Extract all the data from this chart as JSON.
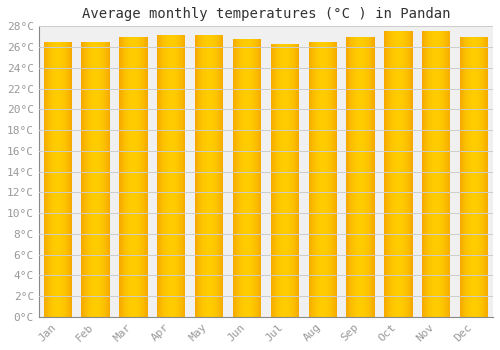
{
  "title": "Average monthly temperatures (°C ) in Pandan",
  "months": [
    "Jan",
    "Feb",
    "Mar",
    "Apr",
    "May",
    "Jun",
    "Jul",
    "Aug",
    "Sep",
    "Oct",
    "Nov",
    "Dec"
  ],
  "values": [
    26.5,
    26.5,
    27.0,
    27.2,
    27.2,
    26.8,
    26.3,
    26.5,
    27.0,
    27.5,
    27.5,
    27.0
  ],
  "bar_color_center": "#FFCC00",
  "bar_color_edge": "#F5A800",
  "background_color": "#FFFFFF",
  "plot_bg_color": "#F0F0F0",
  "grid_color": "#CCCCCC",
  "ytick_labels": [
    "0°C",
    "2°C",
    "4°C",
    "6°C",
    "8°C",
    "10°C",
    "12°C",
    "14°C",
    "16°C",
    "18°C",
    "20°C",
    "22°C",
    "24°C",
    "26°C",
    "28°C"
  ],
  "ytick_values": [
    0,
    2,
    4,
    6,
    8,
    10,
    12,
    14,
    16,
    18,
    20,
    22,
    24,
    26,
    28
  ],
  "ylim": [
    0,
    28
  ],
  "title_fontsize": 10,
  "tick_fontsize": 8,
  "tick_color": "#999999",
  "font_family": "monospace",
  "bar_width": 0.75,
  "n_gradient_cols": 50
}
